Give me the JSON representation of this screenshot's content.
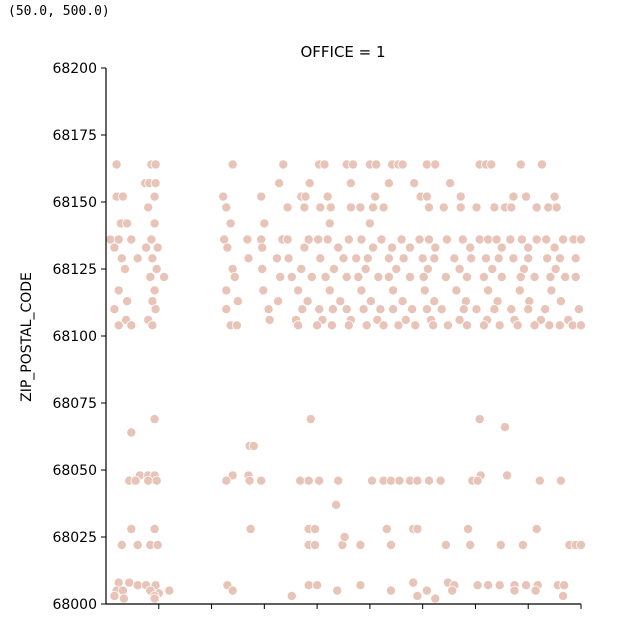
{
  "output_text": "(50.0, 500.0)",
  "chart_data": {
    "type": "scatter",
    "title": "OFFICE = 1",
    "xlabel": "",
    "ylabel": "ZIP_POSTAL_CODE",
    "ylim": [
      68000,
      68200
    ],
    "xlim": [
      50,
      500
    ],
    "yticks": [
      68000,
      68025,
      68050,
      68075,
      68100,
      68125,
      68150,
      68175,
      68200
    ],
    "xticks": [
      100,
      150,
      200,
      250,
      300,
      350,
      400,
      450,
      500
    ],
    "x_tick_labels_visible": false,
    "grid": false,
    "point_color": "#e8c4b8",
    "points": [
      [
        60,
        68164
      ],
      [
        93,
        68164
      ],
      [
        97,
        68164
      ],
      [
        170,
        68164
      ],
      [
        218,
        68164
      ],
      [
        252,
        68164
      ],
      [
        257,
        68164
      ],
      [
        278,
        68164
      ],
      [
        284,
        68164
      ],
      [
        300,
        68164
      ],
      [
        306,
        68164
      ],
      [
        321,
        68164
      ],
      [
        327,
        68164
      ],
      [
        331,
        68164
      ],
      [
        354,
        68164
      ],
      [
        362,
        68164
      ],
      [
        404,
        68164
      ],
      [
        410,
        68164
      ],
      [
        415,
        68164
      ],
      [
        443,
        68164
      ],
      [
        463,
        68164
      ],
      [
        87,
        68157
      ],
      [
        91,
        68157
      ],
      [
        97,
        68157
      ],
      [
        214,
        68157
      ],
      [
        243,
        68157
      ],
      [
        282,
        68157
      ],
      [
        318,
        68157
      ],
      [
        342,
        68157
      ],
      [
        376,
        68157
      ],
      [
        60,
        68152
      ],
      [
        66,
        68152
      ],
      [
        96,
        68152
      ],
      [
        161,
        68152
      ],
      [
        197,
        68152
      ],
      [
        235,
        68152
      ],
      [
        239,
        68152
      ],
      [
        260,
        68152
      ],
      [
        305,
        68152
      ],
      [
        348,
        68152
      ],
      [
        354,
        68152
      ],
      [
        386,
        68152
      ],
      [
        436,
        68152
      ],
      [
        448,
        68152
      ],
      [
        475,
        68152
      ],
      [
        90,
        68148
      ],
      [
        164,
        68148
      ],
      [
        222,
        68148
      ],
      [
        238,
        68148
      ],
      [
        253,
        68148
      ],
      [
        263,
        68148
      ],
      [
        282,
        68148
      ],
      [
        291,
        68148
      ],
      [
        303,
        68148
      ],
      [
        313,
        68148
      ],
      [
        356,
        68148
      ],
      [
        370,
        68148
      ],
      [
        386,
        68148
      ],
      [
        401,
        68148
      ],
      [
        418,
        68148
      ],
      [
        428,
        68148
      ],
      [
        434,
        68148
      ],
      [
        458,
        68148
      ],
      [
        469,
        68148
      ],
      [
        477,
        68148
      ],
      [
        64,
        68142
      ],
      [
        70,
        68142
      ],
      [
        96,
        68142
      ],
      [
        168,
        68142
      ],
      [
        200,
        68142
      ],
      [
        262,
        68142
      ],
      [
        300,
        68142
      ],
      [
        54,
        68136
      ],
      [
        62,
        68136
      ],
      [
        74,
        68136
      ],
      [
        93,
        68136
      ],
      [
        162,
        68136
      ],
      [
        184,
        68136
      ],
      [
        197,
        68136
      ],
      [
        217,
        68136
      ],
      [
        222,
        68136
      ],
      [
        242,
        68136
      ],
      [
        251,
        68136
      ],
      [
        260,
        68136
      ],
      [
        280,
        68136
      ],
      [
        292,
        68136
      ],
      [
        311,
        68136
      ],
      [
        330,
        68136
      ],
      [
        347,
        68136
      ],
      [
        356,
        68136
      ],
      [
        373,
        68136
      ],
      [
        388,
        68136
      ],
      [
        404,
        68136
      ],
      [
        412,
        68136
      ],
      [
        420,
        68136
      ],
      [
        433,
        68136
      ],
      [
        444,
        68136
      ],
      [
        458,
        68136
      ],
      [
        467,
        68136
      ],
      [
        483,
        68136
      ],
      [
        493,
        68136
      ],
      [
        500,
        68136
      ],
      [
        58,
        68133
      ],
      [
        88,
        68133
      ],
      [
        99,
        68133
      ],
      [
        165,
        68133
      ],
      [
        198,
        68133
      ],
      [
        238,
        68133
      ],
      [
        270,
        68133
      ],
      [
        303,
        68133
      ],
      [
        321,
        68133
      ],
      [
        338,
        68133
      ],
      [
        362,
        68133
      ],
      [
        395,
        68133
      ],
      [
        425,
        68133
      ],
      [
        450,
        68133
      ],
      [
        475,
        68133
      ],
      [
        65,
        68129
      ],
      [
        80,
        68129
      ],
      [
        94,
        68129
      ],
      [
        185,
        68129
      ],
      [
        212,
        68129
      ],
      [
        223,
        68129
      ],
      [
        253,
        68129
      ],
      [
        275,
        68129
      ],
      [
        287,
        68129
      ],
      [
        298,
        68129
      ],
      [
        318,
        68129
      ],
      [
        332,
        68129
      ],
      [
        350,
        68129
      ],
      [
        361,
        68129
      ],
      [
        380,
        68129
      ],
      [
        396,
        68129
      ],
      [
        410,
        68129
      ],
      [
        422,
        68129
      ],
      [
        436,
        68129
      ],
      [
        450,
        68129
      ],
      [
        468,
        68129
      ],
      [
        480,
        68129
      ],
      [
        495,
        68129
      ],
      [
        68,
        68125
      ],
      [
        98,
        68125
      ],
      [
        170,
        68125
      ],
      [
        198,
        68125
      ],
      [
        235,
        68125
      ],
      [
        266,
        68125
      ],
      [
        296,
        68125
      ],
      [
        325,
        68125
      ],
      [
        355,
        68125
      ],
      [
        385,
        68125
      ],
      [
        416,
        68125
      ],
      [
        446,
        68125
      ],
      [
        476,
        68125
      ],
      [
        92,
        68122
      ],
      [
        105,
        68122
      ],
      [
        172,
        68122
      ],
      [
        215,
        68122
      ],
      [
        226,
        68122
      ],
      [
        245,
        68122
      ],
      [
        258,
        68122
      ],
      [
        278,
        68122
      ],
      [
        289,
        68122
      ],
      [
        308,
        68122
      ],
      [
        318,
        68122
      ],
      [
        338,
        68122
      ],
      [
        351,
        68122
      ],
      [
        372,
        68122
      ],
      [
        392,
        68122
      ],
      [
        408,
        68122
      ],
      [
        425,
        68122
      ],
      [
        443,
        68122
      ],
      [
        456,
        68122
      ],
      [
        471,
        68122
      ],
      [
        485,
        68122
      ],
      [
        495,
        68122
      ],
      [
        62,
        68117
      ],
      [
        96,
        68117
      ],
      [
        164,
        68117
      ],
      [
        199,
        68117
      ],
      [
        232,
        68117
      ],
      [
        262,
        68117
      ],
      [
        292,
        68117
      ],
      [
        322,
        68117
      ],
      [
        352,
        68117
      ],
      [
        382,
        68117
      ],
      [
        412,
        68117
      ],
      [
        442,
        68117
      ],
      [
        472,
        68117
      ],
      [
        70,
        68113
      ],
      [
        94,
        68113
      ],
      [
        175,
        68113
      ],
      [
        213,
        68113
      ],
      [
        241,
        68113
      ],
      [
        272,
        68113
      ],
      [
        301,
        68113
      ],
      [
        331,
        68113
      ],
      [
        361,
        68113
      ],
      [
        391,
        68113
      ],
      [
        421,
        68113
      ],
      [
        451,
        68113
      ],
      [
        481,
        68113
      ],
      [
        58,
        68110
      ],
      [
        97,
        68110
      ],
      [
        164,
        68110
      ],
      [
        204,
        68110
      ],
      [
        236,
        68110
      ],
      [
        252,
        68110
      ],
      [
        265,
        68110
      ],
      [
        278,
        68110
      ],
      [
        294,
        68110
      ],
      [
        310,
        68110
      ],
      [
        322,
        68110
      ],
      [
        340,
        68110
      ],
      [
        354,
        68110
      ],
      [
        368,
        68110
      ],
      [
        389,
        68110
      ],
      [
        401,
        68110
      ],
      [
        418,
        68110
      ],
      [
        434,
        68110
      ],
      [
        450,
        68110
      ],
      [
        466,
        68110
      ],
      [
        498,
        68110
      ],
      [
        69,
        68106
      ],
      [
        90,
        68106
      ],
      [
        205,
        68106
      ],
      [
        230,
        68106
      ],
      [
        255,
        68106
      ],
      [
        282,
        68106
      ],
      [
        307,
        68106
      ],
      [
        334,
        68106
      ],
      [
        358,
        68106
      ],
      [
        385,
        68106
      ],
      [
        411,
        68106
      ],
      [
        437,
        68106
      ],
      [
        462,
        68106
      ],
      [
        488,
        68106
      ],
      [
        62,
        68104
      ],
      [
        74,
        68104
      ],
      [
        94,
        68104
      ],
      [
        168,
        68104
      ],
      [
        174,
        68104
      ],
      [
        232,
        68104
      ],
      [
        250,
        68104
      ],
      [
        264,
        68104
      ],
      [
        280,
        68104
      ],
      [
        297,
        68104
      ],
      [
        313,
        68104
      ],
      [
        327,
        68104
      ],
      [
        343,
        68104
      ],
      [
        360,
        68104
      ],
      [
        374,
        68104
      ],
      [
        392,
        68104
      ],
      [
        408,
        68104
      ],
      [
        423,
        68104
      ],
      [
        440,
        68104
      ],
      [
        456,
        68104
      ],
      [
        470,
        68104
      ],
      [
        480,
        68104
      ],
      [
        492,
        68104
      ],
      [
        500,
        68104
      ],
      [
        96,
        68069
      ],
      [
        244,
        68069
      ],
      [
        404,
        68069
      ],
      [
        74,
        68064
      ],
      [
        428,
        68066
      ],
      [
        186,
        68059
      ],
      [
        190,
        68059
      ],
      [
        82,
        68048
      ],
      [
        90,
        68048
      ],
      [
        96,
        68048
      ],
      [
        170,
        68048
      ],
      [
        185,
        68048
      ],
      [
        405,
        68048
      ],
      [
        430,
        68048
      ],
      [
        72,
        68046
      ],
      [
        78,
        68046
      ],
      [
        90,
        68046
      ],
      [
        98,
        68046
      ],
      [
        164,
        68046
      ],
      [
        186,
        68046
      ],
      [
        197,
        68046
      ],
      [
        234,
        68046
      ],
      [
        242,
        68046
      ],
      [
        252,
        68046
      ],
      [
        270,
        68046
      ],
      [
        302,
        68046
      ],
      [
        313,
        68046
      ],
      [
        320,
        68046
      ],
      [
        328,
        68046
      ],
      [
        338,
        68046
      ],
      [
        345,
        68046
      ],
      [
        356,
        68046
      ],
      [
        367,
        68046
      ],
      [
        397,
        68046
      ],
      [
        402,
        68046
      ],
      [
        461,
        68046
      ],
      [
        481,
        68046
      ],
      [
        268,
        68037
      ],
      [
        74,
        68028
      ],
      [
        96,
        68028
      ],
      [
        187,
        68028
      ],
      [
        242,
        68028
      ],
      [
        248,
        68028
      ],
      [
        316,
        68028
      ],
      [
        341,
        68028
      ],
      [
        345,
        68028
      ],
      [
        393,
        68028
      ],
      [
        458,
        68028
      ],
      [
        65,
        68022
      ],
      [
        80,
        68022
      ],
      [
        92,
        68022
      ],
      [
        99,
        68022
      ],
      [
        242,
        68022
      ],
      [
        248,
        68022
      ],
      [
        274,
        68022
      ],
      [
        291,
        68022
      ],
      [
        320,
        68022
      ],
      [
        372,
        68022
      ],
      [
        395,
        68022
      ],
      [
        424,
        68022
      ],
      [
        445,
        68022
      ],
      [
        489,
        68022
      ],
      [
        495,
        68022
      ],
      [
        500,
        68022
      ],
      [
        276,
        68025
      ],
      [
        62,
        68008
      ],
      [
        72,
        68008
      ],
      [
        80,
        68007
      ],
      [
        88,
        68007
      ],
      [
        97,
        68007
      ],
      [
        165,
        68007
      ],
      [
        242,
        68007
      ],
      [
        250,
        68007
      ],
      [
        291,
        68007
      ],
      [
        341,
        68008
      ],
      [
        374,
        68008
      ],
      [
        380,
        68007
      ],
      [
        402,
        68007
      ],
      [
        412,
        68007
      ],
      [
        423,
        68007
      ],
      [
        437,
        68007
      ],
      [
        448,
        68007
      ],
      [
        459,
        68007
      ],
      [
        478,
        68007
      ],
      [
        484,
        68007
      ],
      [
        60,
        68005
      ],
      [
        66,
        68005
      ],
      [
        92,
        68005
      ],
      [
        100,
        68004
      ],
      [
        110,
        68005
      ],
      [
        170,
        68005
      ],
      [
        269,
        68005
      ],
      [
        320,
        68005
      ],
      [
        354,
        68005
      ],
      [
        378,
        68005
      ],
      [
        437,
        68005
      ],
      [
        457,
        68005
      ],
      [
        58,
        68003
      ],
      [
        96,
        68003
      ],
      [
        226,
        68003
      ],
      [
        345,
        68003
      ],
      [
        67,
        68002
      ],
      [
        96,
        68002
      ],
      [
        362,
        68002
      ],
      [
        483,
        68003
      ]
    ]
  }
}
